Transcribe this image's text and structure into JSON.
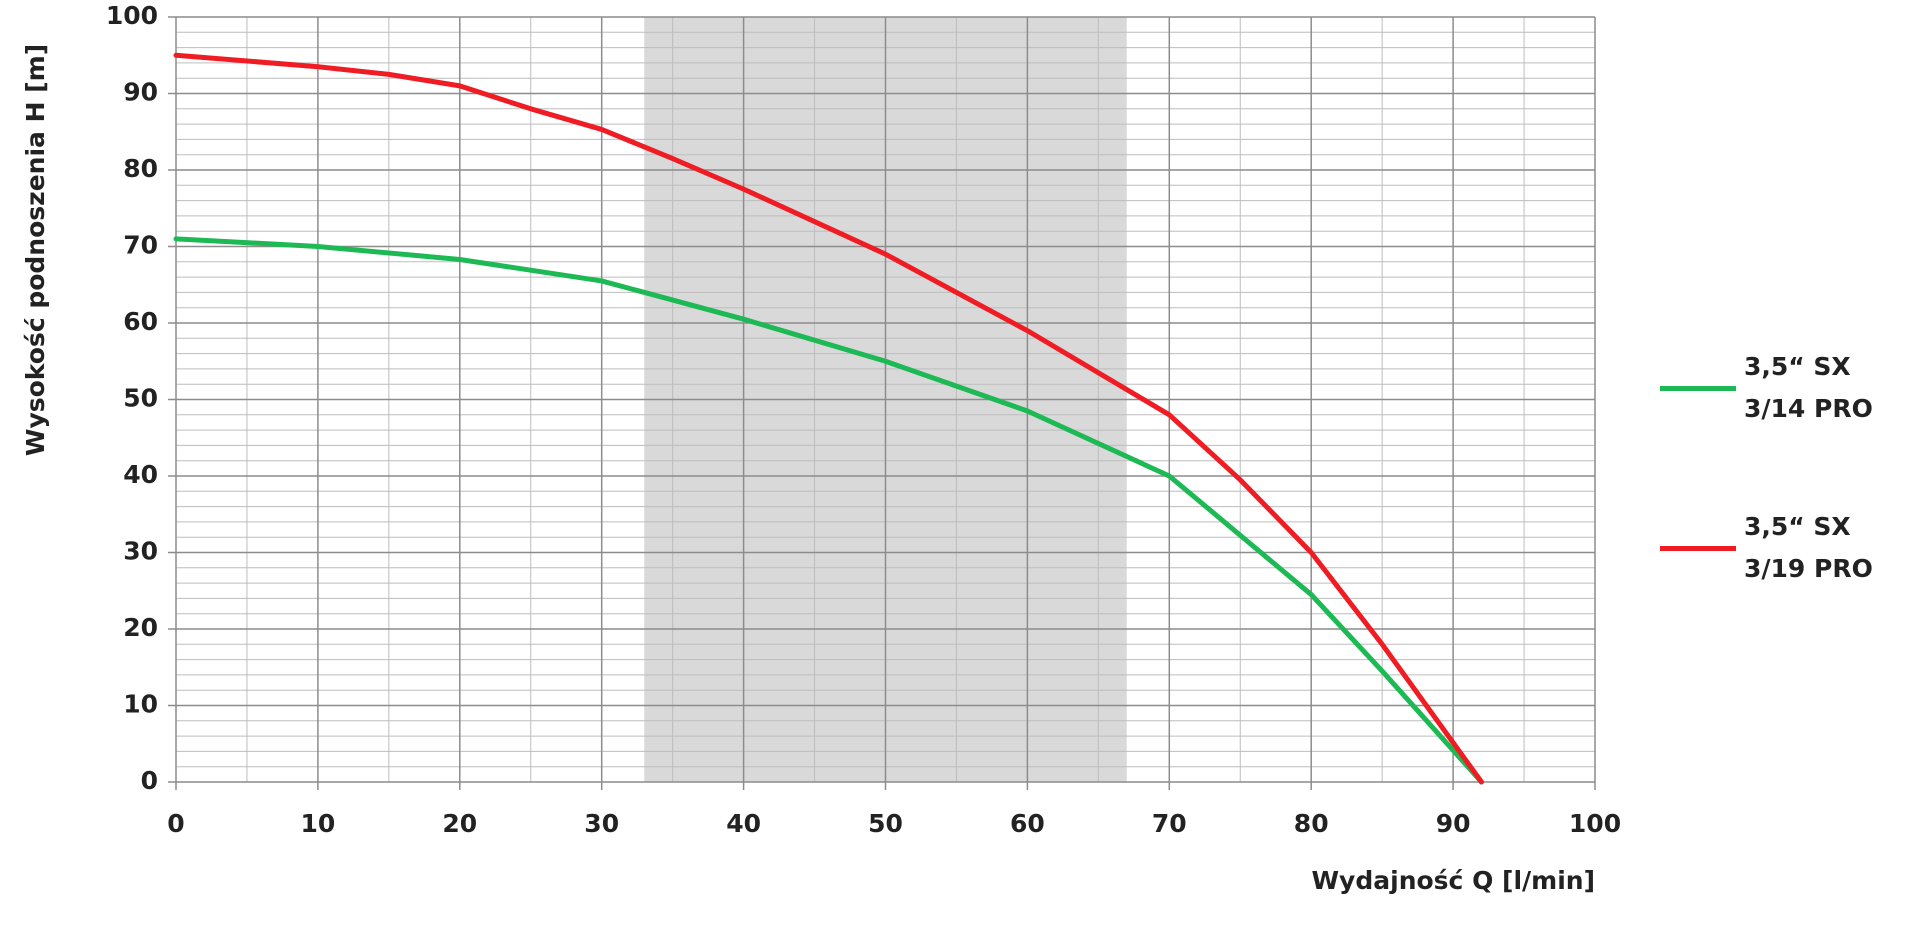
{
  "chart_data": {
    "type": "line",
    "x_label": "Wydajność Q [l/min]",
    "y_label": "Wysokość podnoszenia H [m]",
    "xlim": [
      0,
      100
    ],
    "xticks": [
      0,
      10,
      20,
      30,
      40,
      50,
      60,
      70,
      80,
      90,
      100
    ],
    "ylim": [
      0,
      100
    ],
    "yticks": [
      0,
      10,
      20,
      30,
      40,
      50,
      60,
      70,
      80,
      90,
      100
    ],
    "grid": true,
    "minor_grid": {
      "x": 2,
      "y": 5
    },
    "highlight_range": [
      33,
      67
    ],
    "highlight_color": "#d9d9d9",
    "legend": "right",
    "series": [
      {
        "name": "3,5“ SX 3/14 PRO",
        "color": "#1db954",
        "x": [
          0,
          10,
          20,
          30,
          40,
          50,
          60,
          70,
          80,
          85,
          92
        ],
        "values": [
          71,
          70,
          68.3,
          65.5,
          60.5,
          55,
          48.5,
          40,
          24.5,
          14.5,
          0
        ]
      },
      {
        "name": "3,5“ SX 3/19 PRO",
        "color": "#f01c24",
        "x": [
          0,
          10,
          15,
          20,
          25,
          30,
          35,
          40,
          50,
          60,
          65,
          70,
          75,
          80,
          85,
          92
        ],
        "values": [
          95,
          93.5,
          92.5,
          91,
          88,
          85.3,
          81.5,
          77.5,
          69,
          59,
          53.5,
          48,
          39.5,
          30,
          18,
          0
        ]
      }
    ]
  }
}
